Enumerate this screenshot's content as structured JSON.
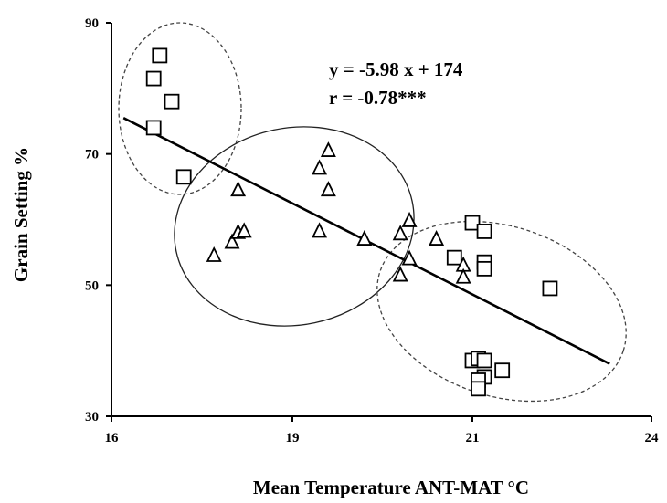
{
  "chart_data": {
    "type": "scatter",
    "title": "",
    "xlabel": "Mean Temperature ANT-MAT °C",
    "ylabel": "Grain Setting %",
    "xlim": [
      16,
      24
    ],
    "ylim": [
      30,
      90
    ],
    "xticks": [
      "16",
      "19",
      "21",
      "24"
    ],
    "yticks": [
      "30",
      "50",
      "70",
      "90"
    ],
    "grid": false,
    "legend": "none",
    "series": [
      {
        "marker": "square",
        "points": [
          [
            16.7,
            81.5
          ],
          [
            16.8,
            85.0
          ],
          [
            17.0,
            78.0
          ],
          [
            16.7,
            74.0
          ],
          [
            17.2,
            66.5
          ],
          [
            20.8,
            54.2
          ],
          [
            21.0,
            59.5
          ],
          [
            21.2,
            58.2
          ],
          [
            21.2,
            53.5
          ],
          [
            21.2,
            52.5
          ],
          [
            22.3,
            49.5
          ],
          [
            21.0,
            38.5
          ],
          [
            21.1,
            38.8
          ],
          [
            21.2,
            38.5
          ],
          [
            21.5,
            37.0
          ],
          [
            21.2,
            36.0
          ],
          [
            21.1,
            35.5
          ],
          [
            21.1,
            34.2
          ]
        ]
      },
      {
        "marker": "triangle",
        "points": [
          [
            17.7,
            54.5
          ],
          [
            18.0,
            56.5
          ],
          [
            18.1,
            58.0
          ],
          [
            18.2,
            58.2
          ],
          [
            18.1,
            64.5
          ],
          [
            19.3,
            58.2
          ],
          [
            19.3,
            67.8
          ],
          [
            19.4,
            70.5
          ],
          [
            19.4,
            64.5
          ],
          [
            19.8,
            57.0
          ],
          [
            20.2,
            57.8
          ],
          [
            20.3,
            59.8
          ],
          [
            20.6,
            57.0
          ],
          [
            20.3,
            54.0
          ],
          [
            20.2,
            51.5
          ],
          [
            20.9,
            53.0
          ],
          [
            20.9,
            51.2
          ]
        ]
      }
    ],
    "fit_line": {
      "x": [
        16.2,
        23.3
      ],
      "y": [
        75.5,
        38.0
      ]
    },
    "annotations": [
      {
        "text": "y = -5.98 x + 174"
      },
      {
        "text": "r =  -0.78***"
      }
    ]
  }
}
